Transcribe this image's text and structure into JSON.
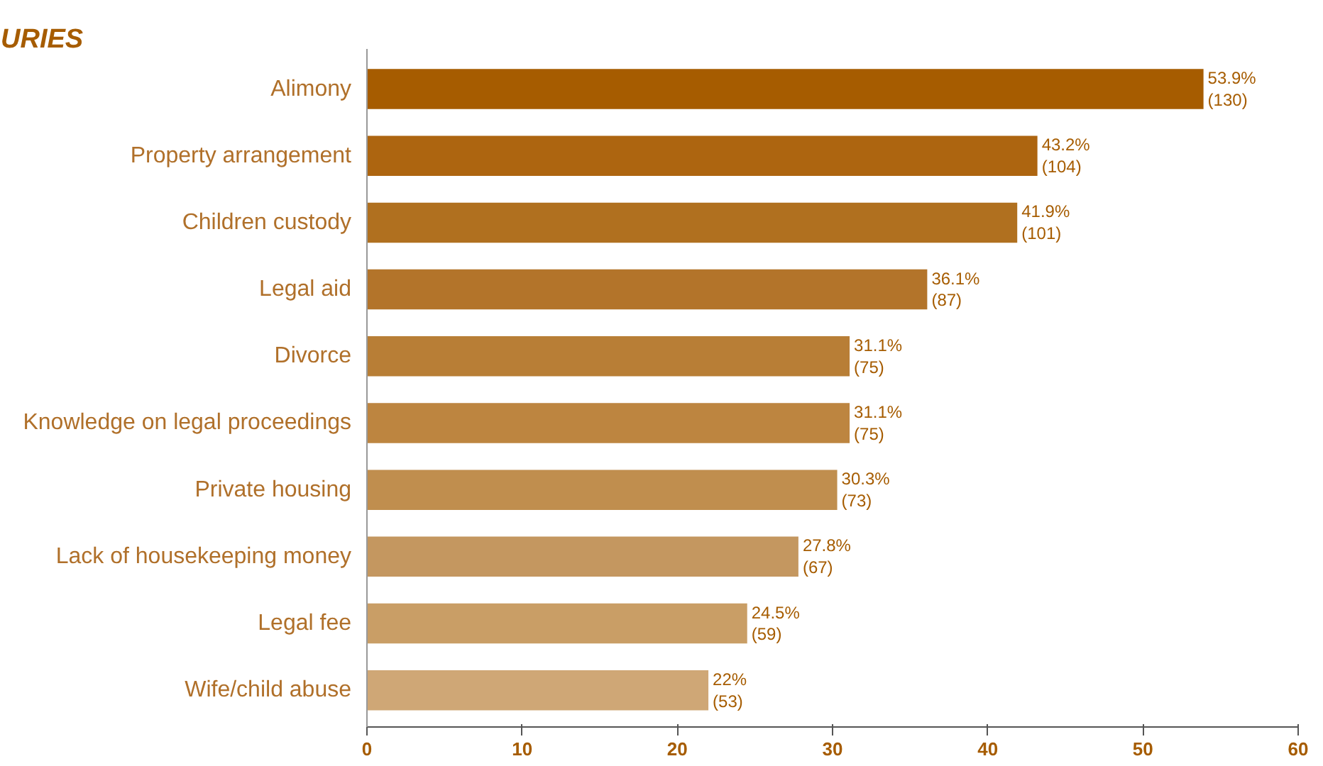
{
  "chart_data": {
    "type": "bar",
    "orientation": "horizontal",
    "title": "URIES",
    "categories": [
      "Alimony",
      "Property arrangement",
      "Children custody",
      "Legal aid",
      "Divorce",
      "Knowledge on legal proceedings",
      "Private housing",
      "Lack of housekeeping money",
      "Legal fee",
      "Wife/child abuse"
    ],
    "values": [
      53.9,
      43.2,
      41.9,
      36.1,
      31.1,
      31.1,
      30.3,
      27.8,
      24.5,
      22
    ],
    "colors": [
      "#a65c00",
      "#ad6510",
      "#b0701f",
      "#b3742a",
      "#b87e36",
      "#bd8540",
      "#c08e4e",
      "#c49760",
      "#c99e66",
      "#cfa776"
    ],
    "value_labels": [
      "53.9%\n(130)",
      "43.2%\n(104)",
      "41.9%\n(101)",
      "36.1%\n(87)",
      "31.1%\n(75)",
      "31.1%\n(75)",
      "30.3%\n(73)",
      "27.8%\n(67)",
      "24.5%\n(59)",
      "22%\n(53)"
    ],
    "xlim": [
      0,
      60
    ],
    "xticks": [
      0,
      10,
      20,
      30,
      40,
      50,
      60
    ],
    "grid": false
  }
}
